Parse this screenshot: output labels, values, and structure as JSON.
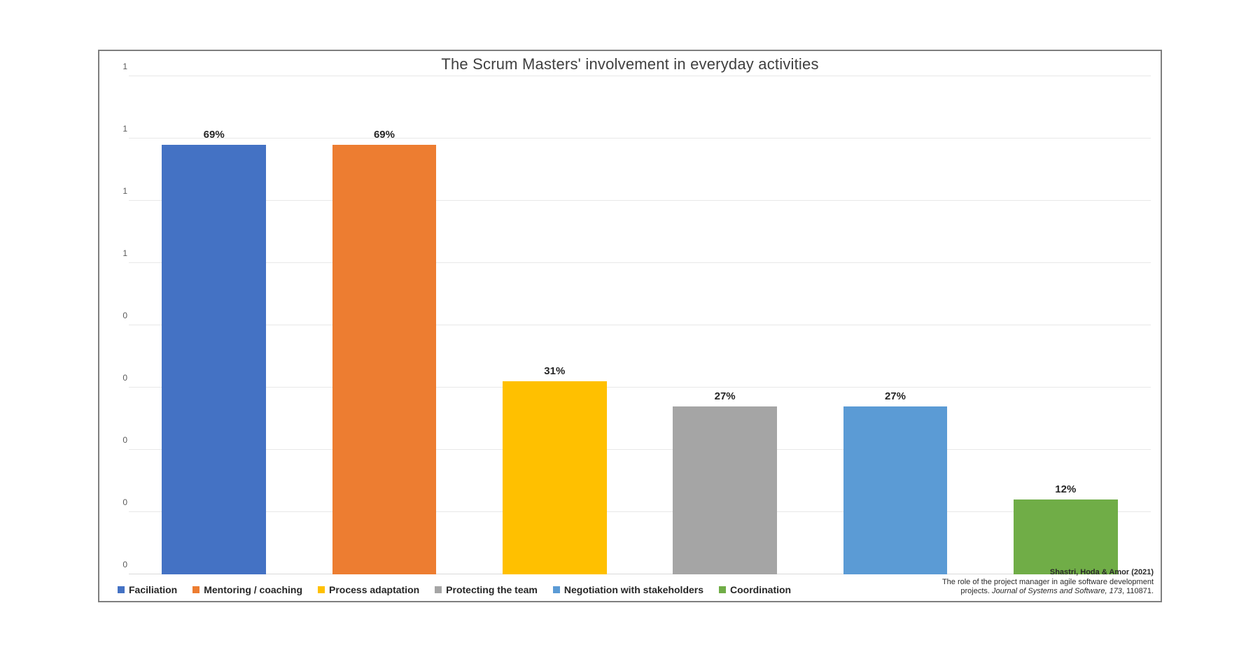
{
  "chart": {
    "type": "bar",
    "title": "The Scrum Masters' involvement in everyday activities",
    "title_fontsize": 22,
    "title_color": "#404040",
    "background_color": "#ffffff",
    "border_color": "#7f7f7f",
    "grid_color": "#e8e8e8",
    "major_grid_color": "#d9d9d9",
    "axis_color": "#595959",
    "ylim": [
      0,
      0.8
    ],
    "ytick_step": 0.1,
    "yticks": [
      {
        "value": 0.0,
        "label": "0"
      },
      {
        "value": 0.1,
        "label": "0"
      },
      {
        "value": 0.2,
        "label": "0"
      },
      {
        "value": 0.3,
        "label": "0"
      },
      {
        "value": 0.4,
        "label": "0"
      },
      {
        "value": 0.5,
        "label": "1"
      },
      {
        "value": 0.6,
        "label": "1"
      },
      {
        "value": 0.7,
        "label": "1"
      },
      {
        "value": 0.8,
        "label": "1"
      }
    ],
    "ytick_fontsize": 12,
    "bar_width": 0.61,
    "bar_label_fontsize": 15,
    "data": [
      {
        "category": "Faciliation",
        "value": 0.69,
        "label": "69%",
        "color": "#4472c4"
      },
      {
        "category": "Mentoring / coaching",
        "value": 0.69,
        "label": "69%",
        "color": "#ed7d31"
      },
      {
        "category": "Process adaptation",
        "value": 0.31,
        "label": "31%",
        "color": "#ffc000"
      },
      {
        "category": "Protecting the team",
        "value": 0.27,
        "label": "27%",
        "color": "#a5a5a5"
      },
      {
        "category": "Negotiation with stakeholders",
        "value": 0.27,
        "label": "27%",
        "color": "#5b9bd5"
      },
      {
        "category": "Coordination",
        "value": 0.12,
        "label": "12%",
        "color": "#70ad47"
      }
    ],
    "legend": {
      "fontsize": 14,
      "swatch_size": 10
    },
    "citation": {
      "line1": "Shastri, Hoda & Amor (2021)",
      "line2": "The role of the project manager in agile software development",
      "line3_prefix": "projects. ",
      "line3_italic": "Journal of Systems and Software, 173",
      "line3_suffix": ", 110871.",
      "fontsize": 11
    }
  }
}
